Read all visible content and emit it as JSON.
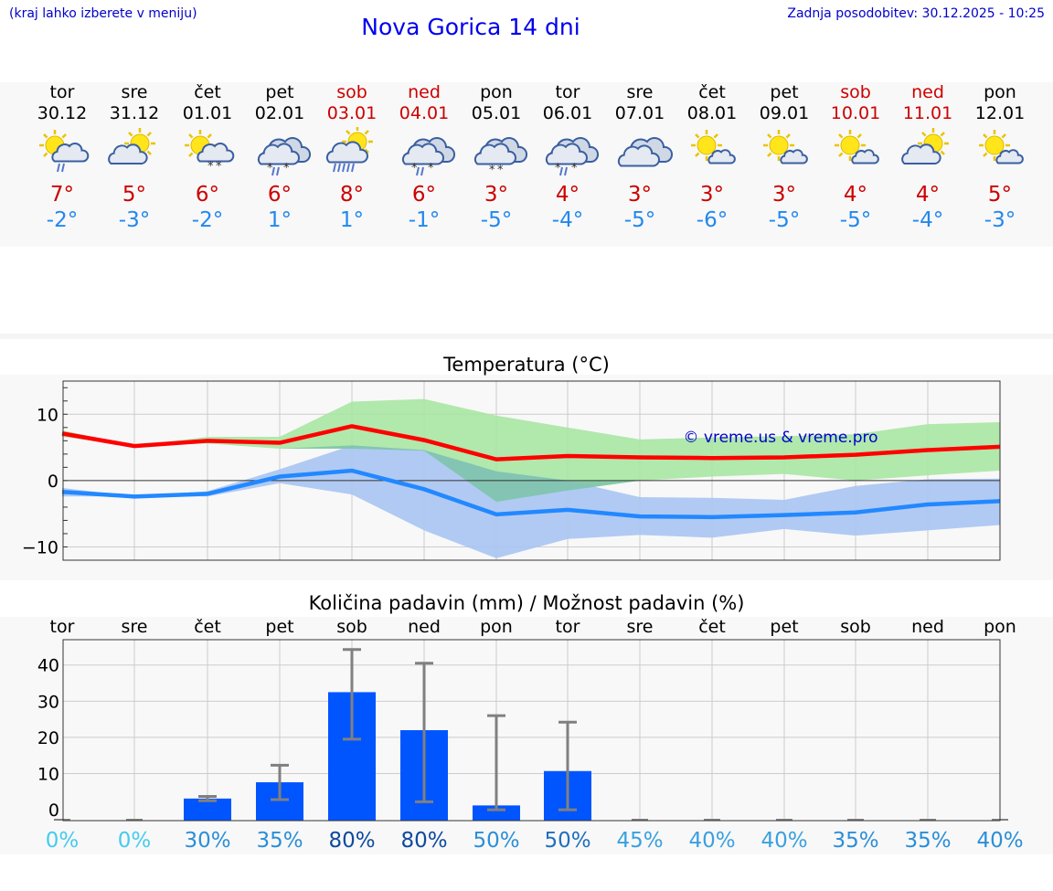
{
  "header": {
    "hint": "(kraj lahko izberete v meniju)",
    "title": "Nova Gorica 14 dni",
    "updated": "Zadnja posodobitev: 30.12.2025 - 10:25"
  },
  "days": [
    {
      "name": "tor",
      "date": "30.12",
      "weekend": false,
      "icon": "sun-cloud-rain-icon",
      "tmax": "7°",
      "tmin": "-2°",
      "chance": "0%"
    },
    {
      "name": "sre",
      "date": "31.12",
      "weekend": false,
      "icon": "sun-cloud-icon",
      "tmax": "5°",
      "tmin": "-3°",
      "chance": "0%"
    },
    {
      "name": "čet",
      "date": "01.01",
      "weekend": false,
      "icon": "sun-cloud-snow-icon",
      "tmax": "6°",
      "tmin": "-2°",
      "chance": "30%"
    },
    {
      "name": "pet",
      "date": "02.01",
      "weekend": false,
      "icon": "cloud-sleet-icon",
      "tmax": "6°",
      "tmin": "1°",
      "chance": "35%"
    },
    {
      "name": "sob",
      "date": "03.01",
      "weekend": true,
      "icon": "sun-cloud-heavy-rain-icon",
      "tmax": "8°",
      "tmin": "1°",
      "chance": "80%"
    },
    {
      "name": "ned",
      "date": "04.01",
      "weekend": true,
      "icon": "cloud-sleet-icon",
      "tmax": "6°",
      "tmin": "-1°",
      "chance": "80%"
    },
    {
      "name": "pon",
      "date": "05.01",
      "weekend": false,
      "icon": "cloud-snow-icon",
      "tmax": "3°",
      "tmin": "-5°",
      "chance": "50%"
    },
    {
      "name": "tor",
      "date": "06.01",
      "weekend": false,
      "icon": "cloud-sleet-icon",
      "tmax": "4°",
      "tmin": "-4°",
      "chance": "50%"
    },
    {
      "name": "sre",
      "date": "07.01",
      "weekend": false,
      "icon": "cloud-icon",
      "tmax": "3°",
      "tmin": "-5°",
      "chance": "45%"
    },
    {
      "name": "čet",
      "date": "08.01",
      "weekend": false,
      "icon": "sun-small-cloud-icon",
      "tmax": "3°",
      "tmin": "-6°",
      "chance": "40%"
    },
    {
      "name": "pet",
      "date": "09.01",
      "weekend": false,
      "icon": "sun-small-cloud-icon",
      "tmax": "3°",
      "tmin": "-5°",
      "chance": "40%"
    },
    {
      "name": "sob",
      "date": "10.01",
      "weekend": true,
      "icon": "sun-small-cloud-icon",
      "tmax": "4°",
      "tmin": "-5°",
      "chance": "35%"
    },
    {
      "name": "ned",
      "date": "11.01",
      "weekend": true,
      "icon": "sun-cloud-icon",
      "tmax": "4°",
      "tmin": "-4°",
      "chance": "35%"
    },
    {
      "name": "pon",
      "date": "12.01",
      "weekend": false,
      "icon": "sun-small-cloud-icon",
      "tmax": "5°",
      "tmin": "-3°",
      "chance": "40%"
    }
  ],
  "colors": {
    "max_line": "#ff0000",
    "min_line": "#2288ff",
    "max_band": "#a8e6a3",
    "min_band": "#a9c4f2",
    "overlap_band": "#7cc4a8",
    "bar": "#0055ff",
    "whisker": "#808080",
    "watermark": "#0000cc"
  },
  "chart_data": [
    {
      "type": "line",
      "title": "Temperatura (°C)",
      "watermark": "© vreme.us & vreme.pro",
      "xlabel": "",
      "ylabel": "",
      "ylim": [
        -12,
        15
      ],
      "yticks": [
        10,
        0,
        -10
      ],
      "ytick_labels": [
        "10",
        "0",
        "−10"
      ],
      "x": [
        0,
        1,
        2,
        3,
        4,
        5,
        6,
        7,
        8,
        9,
        10,
        11,
        12,
        13
      ],
      "series": [
        {
          "name": "max",
          "values": [
            7.1,
            5.2,
            6.0,
            5.7,
            8.2,
            6.1,
            3.2,
            3.7,
            3.5,
            3.4,
            3.5,
            3.9,
            4.6,
            5.1
          ],
          "band_low": [
            6.6,
            5.2,
            5.6,
            4.8,
            4.8,
            4.5,
            -3.2,
            -1.5,
            0.0,
            0.6,
            1.0,
            0.0,
            0.8,
            1.5
          ],
          "band_high": [
            7.6,
            5.2,
            6.6,
            6.6,
            11.9,
            12.3,
            9.8,
            8.0,
            6.2,
            6.5,
            6.7,
            7.0,
            8.5,
            8.8
          ]
        },
        {
          "name": "min",
          "values": [
            -1.7,
            -2.4,
            -2.0,
            0.6,
            1.5,
            -1.3,
            -5.1,
            -4.4,
            -5.4,
            -5.5,
            -5.2,
            -4.8,
            -3.6,
            -3.1
          ],
          "band_low": [
            -2.4,
            -2.4,
            -2.4,
            -0.4,
            -2.1,
            -7.5,
            -11.7,
            -8.8,
            -8.2,
            -8.6,
            -7.3,
            -8.3,
            -7.5,
            -6.7
          ],
          "band_high": [
            -1.1,
            -2.4,
            -1.6,
            1.7,
            5.3,
            4.6,
            1.4,
            0.0,
            -2.5,
            -2.6,
            -2.9,
            -0.8,
            0.2,
            0.3
          ]
        }
      ]
    },
    {
      "type": "bar",
      "title": "Količina padavin (mm) / Možnost padavin (%)",
      "xlabel": "",
      "ylabel": "",
      "ylim": [
        -3,
        47
      ],
      "yticks": [
        40,
        30,
        20,
        10,
        0
      ],
      "categories": [
        "tor",
        "sre",
        "čet",
        "pet",
        "sob",
        "ned",
        "pon",
        "tor",
        "sre",
        "čet",
        "pet",
        "sob",
        "ned",
        "pon"
      ],
      "values": [
        0,
        0,
        3.1,
        7.6,
        32.5,
        22.0,
        1.2,
        10.7,
        0,
        0,
        0,
        0,
        0,
        0
      ],
      "err_low": [
        0,
        0,
        2.5,
        2.8,
        19.5,
        2.2,
        0,
        0,
        0,
        0,
        0,
        0,
        0,
        0
      ],
      "err_high": [
        0,
        0,
        3.7,
        12.3,
        44.3,
        40.5,
        26.0,
        24.2,
        0,
        0,
        0,
        0,
        0,
        0
      ],
      "chance": [
        "0%",
        "0%",
        "30%",
        "35%",
        "80%",
        "80%",
        "50%",
        "50%",
        "45%",
        "40%",
        "40%",
        "35%",
        "35%",
        "40%"
      ],
      "chance_colors": [
        "#44ccee",
        "#44ccee",
        "#2a8fd8",
        "#2a8fd8",
        "#0d4a9e",
        "#0d4a9e",
        "#2a8fd8",
        "#1f6ec0",
        "#3aa0e0",
        "#3aa0e0",
        "#3aa0e0",
        "#2a8fd8",
        "#2a8fd8",
        "#2a8fd8"
      ]
    }
  ]
}
